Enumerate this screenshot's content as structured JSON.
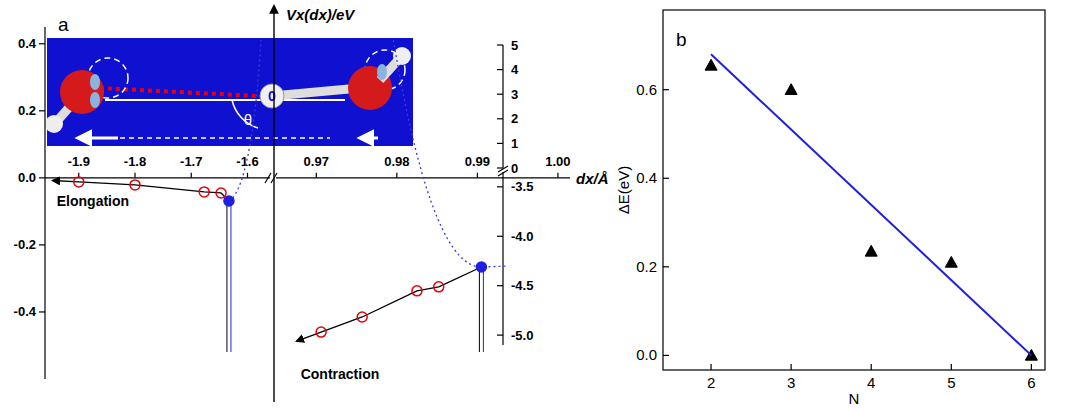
{
  "chart_data": [
    {
      "type": "scatter",
      "panel_label": "a",
      "ylim": [
        -0.6,
        0.45
      ],
      "yticks": [
        {
          "value": -0.4,
          "label": "-0.4"
        },
        {
          "value": -0.2,
          "label": "-0.2"
        },
        {
          "value": 0,
          "label": "0.0"
        },
        {
          "value": 0.2,
          "label": "0.2"
        },
        {
          "value": 0.4,
          "label": "0.4"
        }
      ],
      "x_segments": [
        {
          "xlim": [
            -1.96,
            -1.56
          ],
          "xticks": [
            -1.9,
            -1.8,
            -1.7,
            -1.6
          ]
        },
        {
          "xlim": [
            0.965,
            1.0015
          ],
          "xticks": [
            0.97,
            0.98,
            0.99,
            {
              "value": 1.0,
              "label": "1.00"
            }
          ]
        }
      ],
      "xlabel": "dx/Å",
      "y2label": "Vx(dx)/eV",
      "y2_segments": [
        {
          "y2lim": [
            0,
            5
          ],
          "y2ticks": [
            0,
            1,
            2,
            3,
            4,
            5
          ]
        },
        {
          "y2lim": [
            -5.1,
            -3.35
          ],
          "y2ticks": [
            -3.5,
            {
              "value": -4,
              "label": "-4.0"
            },
            -4.5,
            {
              "value": -5,
              "label": "-5.0"
            }
          ]
        }
      ],
      "series": [
        {
          "x_segment": 0,
          "marker": "circle_open",
          "color": "#e8000b",
          "x": [
            -1.9,
            -1.8,
            -1.677,
            -1.647
          ],
          "values": [
            -0.012,
            -0.021,
            -0.042,
            -0.045
          ]
        },
        {
          "x_segment": 0,
          "marker": "circle",
          "color": "#1f1fe0",
          "x": [
            -1.633
          ],
          "values": [
            -0.069
          ]
        },
        {
          "x_segment": 1,
          "marker": "circle_open",
          "color": "#e8000b",
          "x": [
            0.9706,
            0.9757,
            0.9825,
            0.9852
          ],
          "values": [
            -0.46,
            -0.415,
            -0.337,
            -0.325
          ]
        },
        {
          "x_segment": 1,
          "marker": "circle",
          "color": "#1f1fe0",
          "x": [
            0.9905
          ],
          "values": [
            -0.266
          ]
        }
      ],
      "annotations": [
        "Elongation",
        "Contraction"
      ],
      "inset_labels": [
        "0",
        "θ"
      ]
    },
    {
      "type": "scatter",
      "panel_label": "b",
      "xlabel": "N",
      "ylabel": "ΔE(eV)",
      "xlim": [
        1.4,
        6.17
      ],
      "ylim": [
        -0.033,
        0.78
      ],
      "xticks": [
        2,
        3,
        4,
        5,
        6
      ],
      "yticks": [
        {
          "value": 0,
          "label": "0.0"
        },
        0.2,
        0.4,
        0.6
      ],
      "series": [
        {
          "type": "scatter",
          "marker": "triangle",
          "color": "#000000",
          "x": [
            2,
            3,
            4,
            5,
            6
          ],
          "values": [
            0.655,
            0.6,
            0.235,
            0.21,
            0.0
          ]
        },
        {
          "type": "line",
          "color": "#1f1fe0",
          "x": [
            2,
            6
          ],
          "values": [
            0.68,
            0.0
          ]
        }
      ]
    }
  ]
}
